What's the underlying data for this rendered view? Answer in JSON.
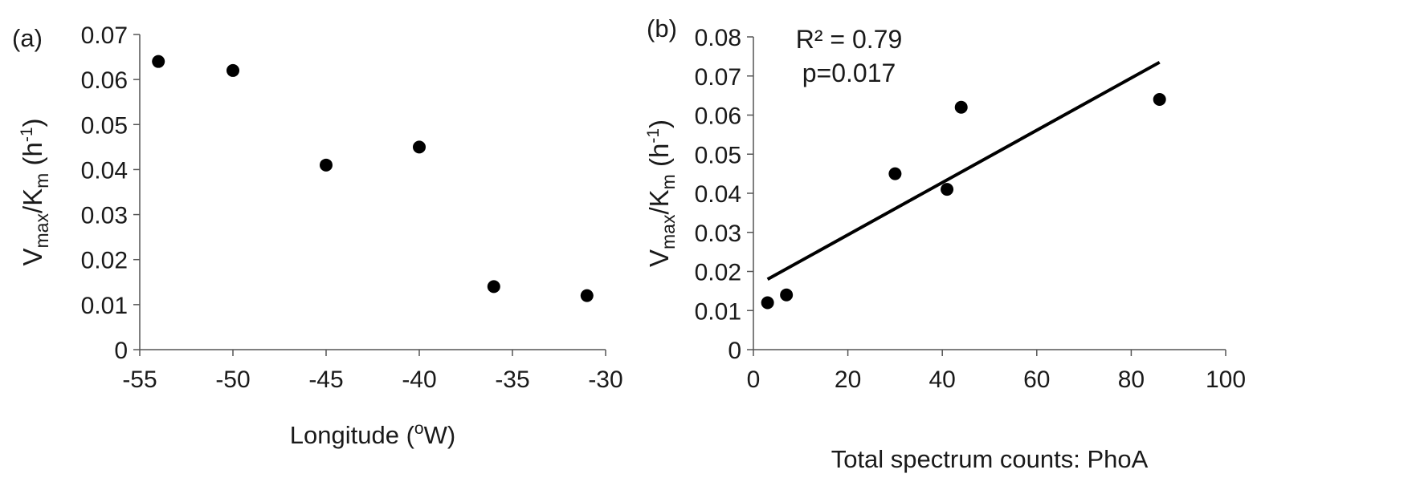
{
  "chart_data": [
    {
      "panel_label": "(a)",
      "type": "scatter",
      "xlabel": "Longitude (°W)",
      "ylabel": {
        "base": "V",
        "sub1": "max",
        "mid": "/K",
        "sub2": "m",
        "tail": " (h",
        "sup": "-1",
        "end": ")"
      },
      "xlim": [
        -55,
        -30
      ],
      "ylim": [
        0,
        0.07
      ],
      "xticks": [
        "-55",
        "-50",
        "-45",
        "-40",
        "-35",
        "-30"
      ],
      "xtick_values": [
        -55,
        -50,
        -45,
        -40,
        -35,
        -30
      ],
      "yticks": [
        "0",
        "0.01",
        "0.02",
        "0.03",
        "0.04",
        "0.05",
        "0.06",
        "0.07"
      ],
      "ytick_values": [
        0,
        0.01,
        0.02,
        0.03,
        0.04,
        0.05,
        0.06,
        0.07
      ],
      "grid": false,
      "series": [
        {
          "x": [
            -54,
            -50,
            -45,
            -40,
            -36,
            -31
          ],
          "y": [
            0.064,
            0.062,
            0.041,
            0.045,
            0.014,
            0.012
          ]
        }
      ]
    },
    {
      "panel_label": "(b)",
      "type": "scatter",
      "xlabel": "Total spectrum counts: PhoA",
      "ylabel": {
        "base": "V",
        "sub1": "max",
        "mid": "/K",
        "sub2": "m",
        "tail": " (h",
        "sup": "-1",
        "end": ")"
      },
      "xlim": [
        0,
        100
      ],
      "ylim": [
        0,
        0.08
      ],
      "xticks": [
        "0",
        "20",
        "40",
        "60",
        "80",
        "100"
      ],
      "xtick_values": [
        0,
        20,
        40,
        60,
        80,
        100
      ],
      "yticks": [
        "0",
        "0.01",
        "0.02",
        "0.03",
        "0.04",
        "0.05",
        "0.06",
        "0.07",
        "0.08"
      ],
      "ytick_values": [
        0,
        0.01,
        0.02,
        0.03,
        0.04,
        0.05,
        0.06,
        0.07,
        0.08
      ],
      "grid": false,
      "annotations": [
        "R² = 0.79",
        "p=0.017"
      ],
      "series": [
        {
          "x": [
            3,
            7,
            30,
            41,
            44,
            86
          ],
          "y": [
            0.012,
            0.014,
            0.045,
            0.041,
            0.062,
            0.064
          ]
        }
      ],
      "trendline": {
        "x": [
          3,
          86
        ],
        "y": [
          0.018,
          0.0735
        ]
      }
    }
  ]
}
